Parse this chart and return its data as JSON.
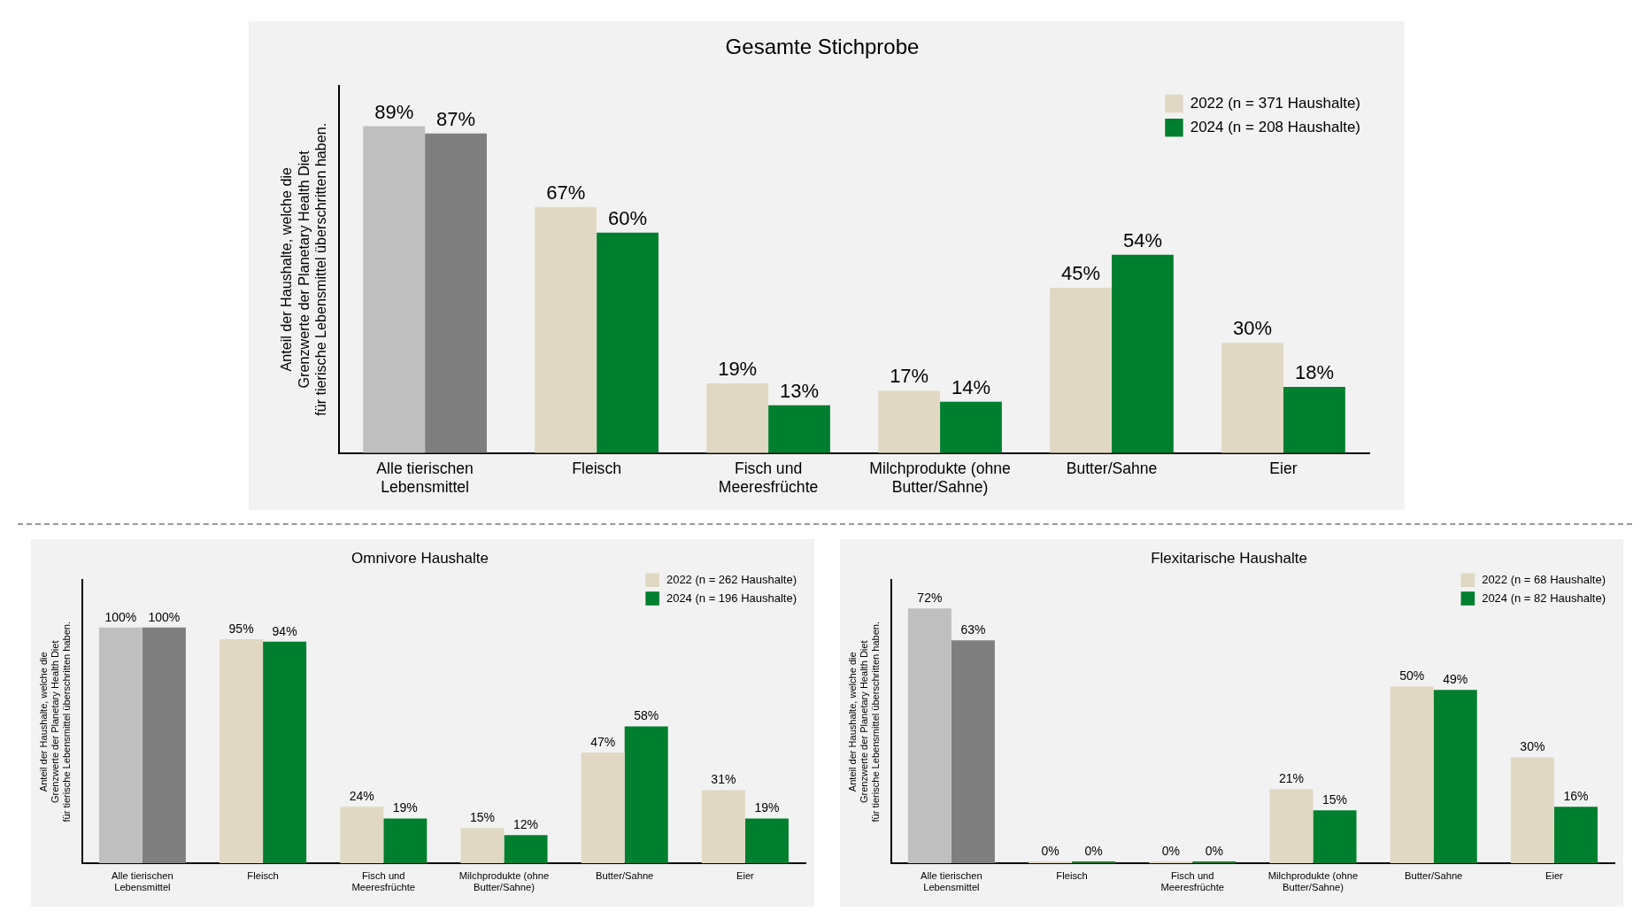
{
  "chart_data": [
    {
      "type": "bar",
      "title": "Gesamte Stichprobe",
      "ylabel": "Anteil der Haushalte, welche die\nGrenzwerte der Planetary Health Diet\nfür tierische Lebensmittel überschritten haben.",
      "categories": [
        "Alle tierischen\nLebensmittel",
        "Fleisch",
        "Fisch und\nMeeresfrüchte",
        "Milchprodukte (ohne\nButter/Sahne)",
        "Butter/Sahne",
        "Eier"
      ],
      "series": [
        {
          "name": "2022 (n = 371 Haushalte)",
          "color": "#e0d8c3",
          "colors": [
            "#bfbfbf",
            "#e0d8c3",
            "#e0d8c3",
            "#e0d8c3",
            "#e0d8c3",
            "#e0d8c3"
          ],
          "values": [
            89,
            67,
            19,
            17,
            45,
            30
          ],
          "value_labels": [
            "89%",
            "67%",
            "19%",
            "17%",
            "45%",
            "30%"
          ]
        },
        {
          "name": "2024 (n = 208 Haushalte)",
          "color": "#007f2e",
          "colors": [
            "#7f7f7f",
            "#007f2e",
            "#007f2e",
            "#007f2e",
            "#007f2e",
            "#007f2e"
          ],
          "values": [
            87,
            60,
            13,
            14,
            54,
            18
          ],
          "value_labels": [
            "87%",
            "60%",
            "13%",
            "14%",
            "54%",
            "18%"
          ]
        }
      ],
      "legend": "top right",
      "grid": false,
      "tick_labels": "x"
    },
    {
      "type": "bar",
      "title": "Omnivore Haushalte",
      "ylabel": "Anteil der Haushalte, welche die\nGrenzwerte der Planetary Health Diet\nfür tierische Lebensmittel überschritten haben.",
      "categories": [
        "Alle tierischen\nLebensmittel",
        "Fleisch",
        "Fisch und\nMeeresfrüchte",
        "Milchprodukte (ohne\nButter/Sahne)",
        "Butter/Sahne",
        "Eier"
      ],
      "series": [
        {
          "name": "2022 (n = 262 Haushalte)",
          "color": "#e0d8c3",
          "colors": [
            "#bfbfbf",
            "#e0d8c3",
            "#e0d8c3",
            "#e0d8c3",
            "#e0d8c3",
            "#e0d8c3"
          ],
          "values": [
            100,
            95,
            24,
            15,
            47,
            31
          ],
          "value_labels": [
            "100%",
            "95%",
            "24%",
            "15%",
            "47%",
            "31%"
          ]
        },
        {
          "name": "2024 (n = 196 Haushalte)",
          "color": "#007f2e",
          "colors": [
            "#7f7f7f",
            "#007f2e",
            "#007f2e",
            "#007f2e",
            "#007f2e",
            "#007f2e"
          ],
          "values": [
            100,
            94,
            19,
            12,
            58,
            19
          ],
          "value_labels": [
            "100%",
            "94%",
            "19%",
            "12%",
            "58%",
            "19%"
          ]
        }
      ],
      "legend": "top right",
      "grid": false,
      "tick_labels": "x"
    },
    {
      "type": "bar",
      "title": "Flexitarische Haushalte",
      "ylabel": "Anteil der Haushalte, welche die\nGrenzwerte der Planetary Health Diet\nfür tierische Lebensmittel überschritten haben.",
      "categories": [
        "Alle tierischen\nLebensmittel",
        "Fleisch",
        "Fisch und\nMeeresfrüchte",
        "Milchprodukte (ohne\nButter/Sahne)",
        "Butter/Sahne",
        "Eier"
      ],
      "series": [
        {
          "name": "2022 (n = 68 Haushalte)",
          "color": "#e0d8c3",
          "colors": [
            "#bfbfbf",
            "#e0d8c3",
            "#e0d8c3",
            "#e0d8c3",
            "#e0d8c3",
            "#e0d8c3"
          ],
          "values": [
            72,
            0,
            0,
            21,
            50,
            30
          ],
          "value_labels": [
            "72%",
            "0%",
            "0%",
            "21%",
            "50%",
            "30%"
          ]
        },
        {
          "name": "2024 (n = 82 Haushalte)",
          "color": "#007f2e",
          "colors": [
            "#7f7f7f",
            "#007f2e",
            "#007f2e",
            "#007f2e",
            "#007f2e",
            "#007f2e"
          ],
          "values": [
            63,
            0,
            0,
            15,
            49,
            16
          ],
          "value_labels": [
            "63%",
            "0%",
            "0%",
            "15%",
            "49%",
            "16%"
          ]
        }
      ],
      "legend": "top right",
      "grid": false,
      "tick_labels": "x"
    }
  ]
}
